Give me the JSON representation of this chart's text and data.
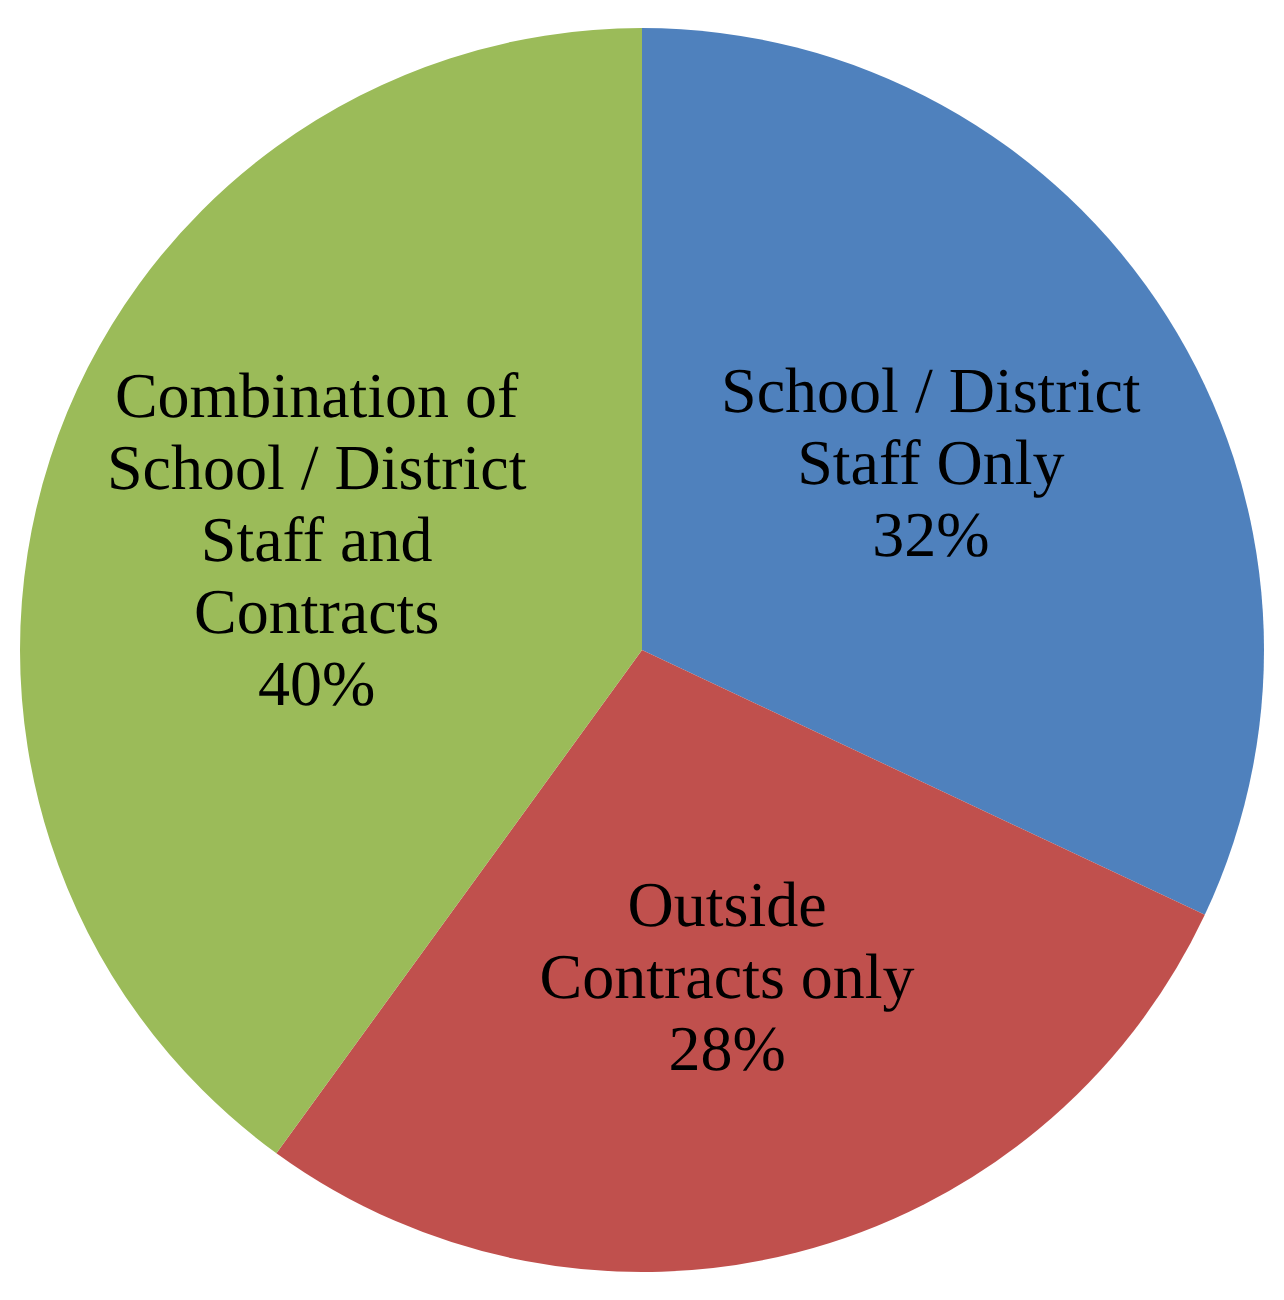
{
  "chart_data": {
    "type": "pie",
    "categories": [
      "School / District Staff Only",
      "Outside Contracts only",
      "Combination of School / District Staff and Contracts"
    ],
    "values": [
      32,
      28,
      40
    ],
    "colors": [
      "#4f81bd",
      "#c0504d",
      "#9bbb59"
    ],
    "value_labels": [
      "32%",
      "28%",
      "40%"
    ],
    "legend": false
  }
}
